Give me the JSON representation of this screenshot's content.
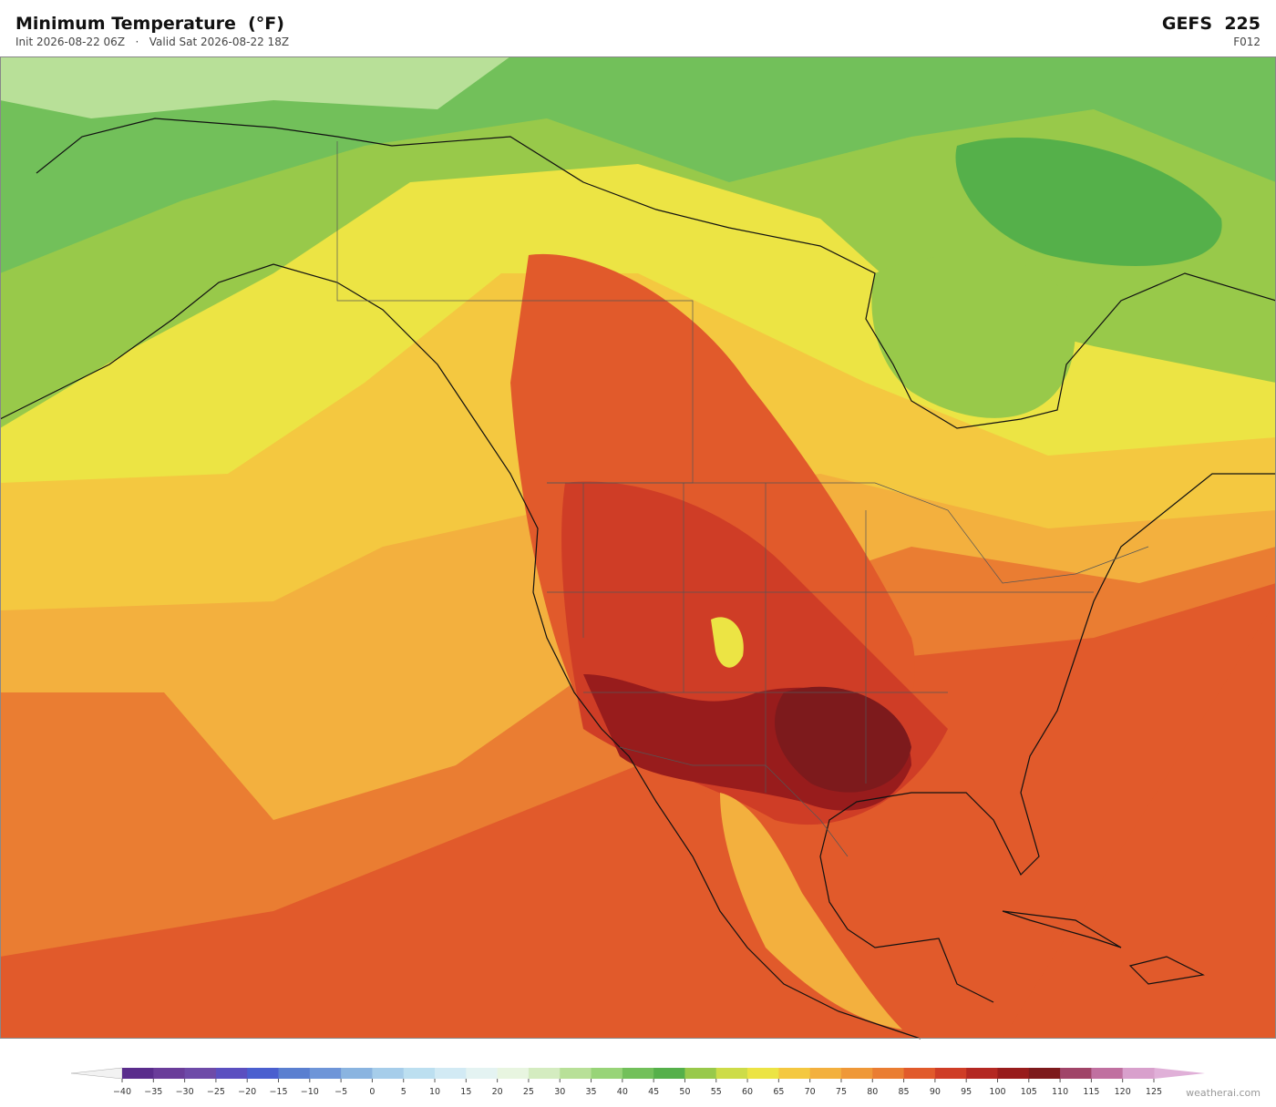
{
  "header": {
    "title": "Minimum Temperature  (°F)",
    "init": "Init 2026-08-22 06Z",
    "separator": "·",
    "valid": "Valid Sat 2026-08-22 18Z",
    "model": "GEFS  225",
    "forecast_hour": "F012"
  },
  "colorbar": {
    "ticks": [
      {
        "value": -40,
        "label": "−40"
      },
      {
        "value": -35,
        "label": "−35"
      },
      {
        "value": -30,
        "label": "−30"
      },
      {
        "value": -25,
        "label": "−25"
      },
      {
        "value": -20,
        "label": "−20"
      },
      {
        "value": -15,
        "label": "−15"
      },
      {
        "value": -10,
        "label": "−10"
      },
      {
        "value": -5,
        "label": "−5"
      },
      0,
      5,
      10,
      15,
      20,
      25,
      30,
      35,
      40,
      45,
      50,
      55,
      60,
      65,
      70,
      75,
      80,
      85,
      90,
      95,
      100,
      105,
      110,
      115,
      120,
      125
    ],
    "colors": [
      "#5a2d8c",
      "#6a3d9a",
      "#6e4aa8",
      "#5b4fc0",
      "#4a5fcf",
      "#5a7fd0",
      "#6e95d8",
      "#8ab4e0",
      "#a6cdea",
      "#bcdff0",
      "#d2eaf4",
      "#e4f3f2",
      "#e8f5e0",
      "#d4ecc0",
      "#b8e098",
      "#98d478",
      "#72c05a",
      "#55b04a",
      "#98c94a",
      "#cddc48",
      "#ece444",
      "#f4c840",
      "#f3b03e",
      "#ef9838",
      "#ea7d32",
      "#e15a2b",
      "#cf3d26",
      "#b42822",
      "#981c1c",
      "#7d1a1c",
      "#a04468",
      "#c070a0",
      "#d8a0cc"
    ],
    "under_color": "#f2f2f2",
    "over_color": "#e0b0d8"
  },
  "footer": {
    "credit": "weatherai.com"
  }
}
